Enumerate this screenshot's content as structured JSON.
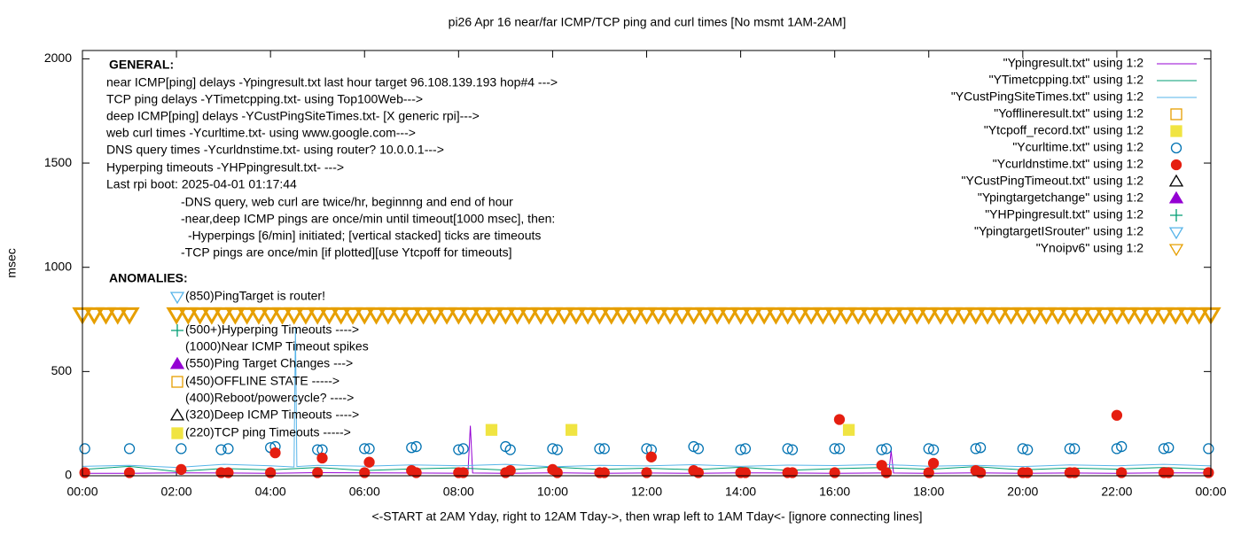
{
  "chart_data": {
    "type": "line",
    "title": "pi26 Apr 16  near/far ICMP/TCP ping and curl times [No msmt 1AM-2AM]",
    "x_label": "<-START at 2AM Yday, right to 12AM Tday->, then wrap left to 1AM Tday<- [ignore connecting lines]",
    "y_label": "msec",
    "xlim": [
      0,
      24
    ],
    "ylim": [
      0,
      2040
    ],
    "xticks": [
      {
        "value": 0,
        "label": "00:00"
      },
      {
        "value": 2,
        "label": "02:00"
      },
      {
        "value": 4,
        "label": "04:00"
      },
      {
        "value": 6,
        "label": "06:00"
      },
      {
        "value": 8,
        "label": "08:00"
      },
      {
        "value": 10,
        "label": "10:00"
      },
      {
        "value": 12,
        "label": "12:00"
      },
      {
        "value": 14,
        "label": "14:00"
      },
      {
        "value": 16,
        "label": "16:00"
      },
      {
        "value": 18,
        "label": "18:00"
      },
      {
        "value": 20,
        "label": "20:00"
      },
      {
        "value": 22,
        "label": "22:00"
      },
      {
        "value": 24,
        "label": "00:00"
      }
    ],
    "yticks": [
      0,
      500,
      1000,
      1500,
      2000
    ],
    "legend": "top-right",
    "annotations": [
      "GENERAL:",
      "near ICMP[ping] delays -Ypingresult.txt last hour target 96.108.139.193 hop#4 --->",
      "TCP ping delays -YTimetcpping.txt- using Top100Web--->",
      "deep ICMP[ping] delays -YCustPingSiteTimes.txt- [X generic rpi]--->",
      "web curl times -Ycurltime.txt- using www.google.com--->",
      "DNS query times -Ycurldnstime.txt- using router? 10.0.0.1--->",
      "Hyperping timeouts -YHPpingresult.txt- --->",
      "Last rpi boot: 2025-04-01 01:17:44",
      "-DNS query, web curl are twice/hr, beginnng and end of hour",
      "-near,deep ICMP pings are once/min until timeout[1000 msec], then:",
      "-Hyperpings [6/min] initiated; [vertical stacked] ticks are timeouts",
      "-TCP pings are once/min [if plotted][use Ytcpoff for timeouts]",
      "ANOMALIES:",
      "(850)PingTarget is router!",
      "(500+)Hyperping Timeouts ---->",
      "(1000)Near ICMP Timeout spikes",
      "(550)Ping Target Changes --->",
      "(450)OFFLINE STATE ----->",
      "(400)Reboot/powercycle? ---->",
      "(320)Deep ICMP Timeouts ---->",
      "(220)TCP ping Timeouts ----->"
    ],
    "series": [
      {
        "name": "\"Ypingresult.txt\" using 1:2",
        "style": "lines",
        "color": "#9400d3",
        "x": [
          0,
          1,
          2,
          3,
          4,
          5,
          6,
          7,
          8,
          8.2,
          8.25,
          8.3,
          9,
          10,
          11,
          12,
          13,
          14,
          15,
          16,
          17,
          17.15,
          17.2,
          17.25,
          18,
          19,
          20,
          21,
          22,
          23,
          24
        ],
        "values": [
          12,
          12,
          14,
          13,
          12,
          15,
          14,
          13,
          12,
          14,
          240,
          13,
          12,
          14,
          12,
          13,
          12,
          14,
          13,
          12,
          13,
          14,
          120,
          13,
          12,
          14,
          12,
          13,
          12,
          14,
          13
        ]
      },
      {
        "name": "\"YTimetcpping.txt\" using 1:2",
        "style": "lines",
        "color": "#009e73",
        "x": [
          0,
          1,
          2,
          3,
          4,
          5,
          6,
          7,
          8,
          9,
          10,
          11,
          12,
          13,
          14,
          15,
          16,
          17,
          18,
          19,
          20,
          21,
          22,
          23,
          24
        ],
        "values": [
          30,
          45,
          20,
          35,
          28,
          40,
          25,
          33,
          38,
          27,
          42,
          30,
          36,
          29,
          41,
          26,
          34,
          39,
          31,
          44,
          28,
          37,
          32,
          40,
          30
        ]
      },
      {
        "name": "\"YCustPingSiteTimes.txt\" using 1:2",
        "style": "lines",
        "color": "#56b4e9",
        "x": [
          0,
          1,
          2,
          3,
          4,
          4.5,
          4.53,
          4.56,
          5,
          6,
          7,
          8,
          9,
          10,
          11,
          12,
          13,
          14,
          15,
          16,
          17,
          18,
          19,
          20,
          21,
          22,
          23,
          24
        ],
        "values": [
          45,
          50,
          40,
          55,
          48,
          42,
          710,
          44,
          50,
          46,
          52,
          48,
          55,
          43,
          50,
          47,
          53,
          45,
          51,
          49,
          54,
          46,
          50,
          44,
          52,
          48,
          55,
          47
        ]
      },
      {
        "name": "\"Yofflineresult.txt\" using 1:2",
        "style": "points",
        "marker": "square-open",
        "color": "#e69f00",
        "x": [],
        "values": []
      },
      {
        "name": "\"Ytcpoff_record.txt\" using 1:2",
        "style": "points",
        "marker": "square",
        "color": "#f0e442",
        "x": [
          8.7,
          10.4,
          16.3
        ],
        "values": [
          220,
          220,
          220
        ]
      },
      {
        "name": "\"Ycurltime.txt\" using 1:2",
        "style": "points",
        "marker": "circle-open",
        "color": "#0072b2",
        "x": [
          0.05,
          1.0,
          2.1,
          2.95,
          3.1,
          4.0,
          4.1,
          5.0,
          5.1,
          6.0,
          6.1,
          7.0,
          7.1,
          8.0,
          8.1,
          9.0,
          9.1,
          10.0,
          10.1,
          11.0,
          11.1,
          12.0,
          12.1,
          13.0,
          13.1,
          14.0,
          14.1,
          15.0,
          15.1,
          16.0,
          16.1,
          17.0,
          17.1,
          18.0,
          18.1,
          19.0,
          19.1,
          20.0,
          20.1,
          21.0,
          21.1,
          22.0,
          22.1,
          23.0,
          23.1,
          23.95
        ],
        "values": [
          130,
          130,
          130,
          125,
          130,
          135,
          140,
          125,
          125,
          130,
          130,
          135,
          140,
          125,
          130,
          140,
          125,
          130,
          125,
          130,
          130,
          130,
          125,
          140,
          130,
          125,
          130,
          130,
          125,
          130,
          130,
          125,
          130,
          130,
          125,
          130,
          135,
          130,
          125,
          130,
          130,
          130,
          140,
          130,
          135,
          130
        ]
      },
      {
        "name": "\"Ycurldnstime.txt\" using 1:2",
        "style": "points",
        "marker": "circle",
        "color": "#e51e10",
        "x": [
          0.05,
          1.0,
          2.1,
          2.95,
          3.1,
          4.0,
          4.1,
          5.0,
          5.1,
          6.0,
          6.1,
          7.0,
          7.1,
          8.0,
          8.1,
          9.0,
          9.1,
          10.0,
          10.1,
          11.0,
          11.1,
          12.0,
          12.1,
          13.0,
          13.1,
          14.0,
          14.1,
          15.0,
          15.1,
          16.0,
          16.1,
          17.0,
          17.1,
          18.0,
          18.1,
          19.0,
          19.1,
          20.0,
          20.1,
          21.0,
          21.1,
          22.0,
          22.1,
          23.0,
          23.1,
          23.95
        ],
        "values": [
          15,
          15,
          30,
          15,
          15,
          15,
          110,
          15,
          85,
          15,
          65,
          25,
          15,
          15,
          15,
          15,
          25,
          30,
          15,
          15,
          15,
          15,
          90,
          25,
          15,
          15,
          15,
          15,
          15,
          15,
          270,
          50,
          15,
          15,
          60,
          25,
          15,
          15,
          15,
          15,
          15,
          290,
          15,
          15,
          15,
          15
        ]
      },
      {
        "name": "\"YCustPingTimeout.txt\" using 1:2",
        "style": "points",
        "marker": "triangle-open",
        "color": "#000000",
        "x": [],
        "values": []
      },
      {
        "name": "\"Ypingtargetchange\" using 1:2",
        "style": "points",
        "marker": "triangle",
        "color": "#9400d3",
        "x": [],
        "values": []
      },
      {
        "name": "\"YHPpingresult.txt\" using 1:2",
        "style": "points",
        "marker": "plus",
        "color": "#009e73",
        "x": [],
        "values": []
      },
      {
        "name": "\"YpingtargetISrouter\" using 1:2",
        "style": "points",
        "marker": "triangle-down-open",
        "color": "#56b4e9",
        "x": [],
        "values": []
      },
      {
        "name": "\"Ynoipv6\" using 1:2",
        "style": "points",
        "marker": "triangle-down-open",
        "color": "#e69f00",
        "x": [
          0,
          0.25,
          0.5,
          0.75,
          1,
          2,
          2.25,
          2.5,
          2.75,
          3,
          3.25,
          3.5,
          3.75,
          4,
          4.25,
          4.5,
          4.75,
          5,
          5.25,
          5.5,
          5.75,
          6,
          6.25,
          6.5,
          6.75,
          7,
          7.25,
          7.5,
          7.75,
          8,
          8.25,
          8.5,
          8.75,
          9,
          9.25,
          9.5,
          9.75,
          10,
          10.25,
          10.5,
          10.75,
          11,
          11.25,
          11.5,
          11.75,
          12,
          12.25,
          12.5,
          12.75,
          13,
          13.25,
          13.5,
          13.75,
          14,
          14.25,
          14.5,
          14.75,
          15,
          15.25,
          15.5,
          15.75,
          16,
          16.25,
          16.5,
          16.75,
          17,
          17.25,
          17.5,
          17.75,
          18,
          18.25,
          18.5,
          18.75,
          19,
          19.25,
          19.5,
          19.75,
          20,
          20.25,
          20.5,
          20.75,
          21,
          21.25,
          21.5,
          21.75,
          22,
          22.25,
          22.5,
          22.75,
          23,
          23.25,
          23.5,
          23.75,
          24
        ],
        "values": [
          775,
          775,
          775,
          775,
          775,
          775,
          775,
          775,
          775,
          775,
          775,
          775,
          775,
          775,
          775,
          775,
          775,
          775,
          775,
          775,
          775,
          775,
          775,
          775,
          775,
          775,
          775,
          775,
          775,
          775,
          775,
          775,
          775,
          775,
          775,
          775,
          775,
          775,
          775,
          775,
          775,
          775,
          775,
          775,
          775,
          775,
          775,
          775,
          775,
          775,
          775,
          775,
          775,
          775,
          775,
          775,
          775,
          775,
          775,
          775,
          775,
          775,
          775,
          775,
          775,
          775,
          775,
          775,
          775,
          775,
          775,
          775,
          775,
          775,
          775,
          775,
          775,
          775,
          775,
          775,
          775,
          775,
          775,
          775,
          775,
          775,
          775,
          775,
          775,
          775,
          775,
          775,
          775,
          775
        ]
      }
    ]
  }
}
